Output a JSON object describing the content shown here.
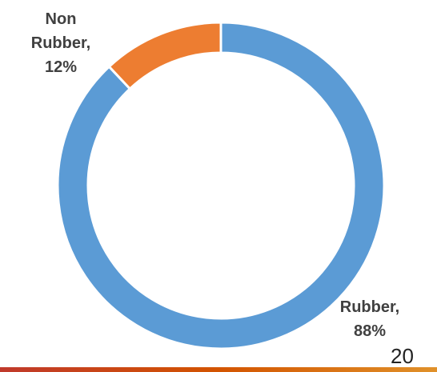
{
  "chart_data": {
    "type": "pie",
    "donut": true,
    "categories": [
      "Rubber",
      "Non Rubber"
    ],
    "values": [
      88,
      12
    ],
    "colors": [
      "#5b9bd5",
      "#ed7d31"
    ],
    "data_labels": [
      [
        "Rubber,",
        "88%"
      ],
      [
        "Non",
        "Rubber,",
        "12%"
      ]
    ],
    "legend": "none"
  },
  "footer": {
    "page_number": "20",
    "bar_color": "#d35400"
  }
}
